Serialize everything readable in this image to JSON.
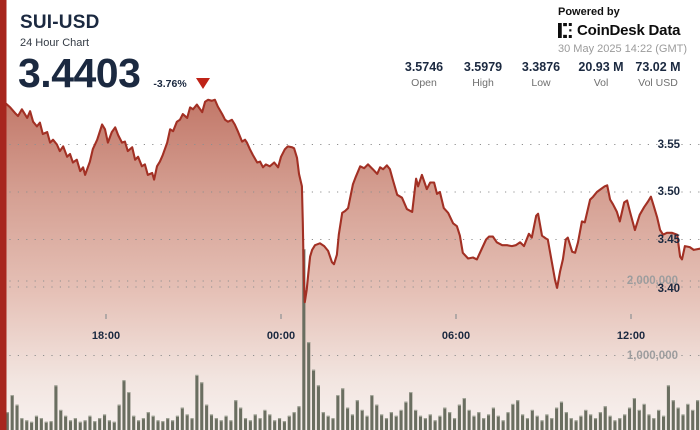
{
  "header": {
    "symbol": "SUI-USD",
    "subtitle": "24 Hour Chart",
    "price": "3.4403",
    "change": "-3.76%",
    "change_direction": "down"
  },
  "stats": [
    {
      "value": "3.5746",
      "label": "Open"
    },
    {
      "value": "3.5979",
      "label": "High"
    },
    {
      "value": "3.3876",
      "label": "Low"
    },
    {
      "value": "20.93 M",
      "label": "Vol"
    },
    {
      "value": "73.02 M",
      "label": "Vol USD"
    }
  ],
  "branding": {
    "powered_by": "Powered by",
    "brand": "CoinDesk Data",
    "logo": "coindesk-logo",
    "timestamp": "30 May 2025 14:22 (GMT)"
  },
  "colors": {
    "accent_red": "#a23024",
    "left_bar_red": "#a7261e",
    "triangle_red": "#bf2317",
    "navy_text": "#1b2940",
    "gray_text": "#6f6f6f",
    "volume_bar": "#6a6e60",
    "grid_dot": "#8f8f8f"
  },
  "chart_data": {
    "type": "area",
    "title": "SUI-USD 24 Hour Chart",
    "x_unit": "minutes since 14:22 GMT 29 May 2025",
    "x_range_minutes": [
      0,
      1440
    ],
    "price_axis": {
      "ticks": [
        "3.55",
        "3.50",
        "3.45",
        "3.40"
      ],
      "tick_values": [
        3.55,
        3.5,
        3.45,
        3.4
      ]
    },
    "volume_axis": {
      "ticks": [
        "2,000,000",
        "1,000,000"
      ],
      "tick_values_m": [
        2,
        1
      ]
    },
    "x_axis": {
      "ticks": [
        {
          "minute": 218,
          "label": "18:00"
        },
        {
          "minute": 578,
          "label": "00:00"
        },
        {
          "minute": 938,
          "label": "06:00"
        },
        {
          "minute": 1298,
          "label": "12:00"
        }
      ]
    },
    "price_series": [
      [
        0,
        3.598
      ],
      [
        10,
        3.594
      ],
      [
        21,
        3.589
      ],
      [
        31,
        3.583
      ],
      [
        37,
        3.58
      ],
      [
        45,
        3.587
      ],
      [
        56,
        3.578
      ],
      [
        62,
        3.585
      ],
      [
        68,
        3.574
      ],
      [
        76,
        3.569
      ],
      [
        82,
        3.573
      ],
      [
        88,
        3.561
      ],
      [
        97,
        3.563
      ],
      [
        103,
        3.552
      ],
      [
        109,
        3.555
      ],
      [
        117,
        3.55
      ],
      [
        123,
        3.543
      ],
      [
        130,
        3.548
      ],
      [
        138,
        3.537
      ],
      [
        144,
        3.54
      ],
      [
        150,
        3.531
      ],
      [
        158,
        3.534
      ],
      [
        165,
        3.522
      ],
      [
        171,
        3.526
      ],
      [
        175,
        3.518
      ],
      [
        185,
        3.532
      ],
      [
        191,
        3.545
      ],
      [
        200,
        3.555
      ],
      [
        210,
        3.571
      ],
      [
        216,
        3.566
      ],
      [
        222,
        3.552
      ],
      [
        230,
        3.563
      ],
      [
        237,
        3.568
      ],
      [
        243,
        3.56
      ],
      [
        251,
        3.552
      ],
      [
        257,
        3.553
      ],
      [
        263,
        3.543
      ],
      [
        272,
        3.547
      ],
      [
        278,
        3.534
      ],
      [
        284,
        3.537
      ],
      [
        292,
        3.527
      ],
      [
        298,
        3.529
      ],
      [
        304,
        3.518
      ],
      [
        313,
        3.52
      ],
      [
        317,
        3.513
      ],
      [
        323,
        3.527
      ],
      [
        329,
        3.532
      ],
      [
        335,
        3.539
      ],
      [
        344,
        3.552
      ],
      [
        350,
        3.566
      ],
      [
        356,
        3.564
      ],
      [
        364,
        3.574
      ],
      [
        370,
        3.576
      ],
      [
        376,
        3.582
      ],
      [
        385,
        3.578
      ],
      [
        391,
        3.589
      ],
      [
        397,
        3.587
      ],
      [
        405,
        3.592
      ],
      [
        409,
        3.589
      ],
      [
        416,
        3.584
      ],
      [
        422,
        3.595
      ],
      [
        428,
        3.597
      ],
      [
        436,
        3.596
      ],
      [
        442,
        3.597
      ],
      [
        448,
        3.59
      ],
      [
        457,
        3.582
      ],
      [
        463,
        3.576
      ],
      [
        469,
        3.574
      ],
      [
        477,
        3.576
      ],
      [
        483,
        3.571
      ],
      [
        490,
        3.563
      ],
      [
        498,
        3.553
      ],
      [
        504,
        3.555
      ],
      [
        508,
        3.552
      ],
      [
        514,
        3.545
      ],
      [
        520,
        3.539
      ],
      [
        529,
        3.531
      ],
      [
        535,
        3.532
      ],
      [
        541,
        3.526
      ],
      [
        547,
        3.529
      ],
      [
        555,
        3.527
      ],
      [
        564,
        3.531
      ],
      [
        572,
        3.526
      ],
      [
        578,
        3.537
      ],
      [
        586,
        3.545
      ],
      [
        592,
        3.548
      ],
      [
        601,
        3.547
      ],
      [
        605,
        3.546
      ],
      [
        611,
        3.536
      ],
      [
        615,
        3.519
      ],
      [
        621,
        3.506
      ],
      [
        623,
        3.468
      ],
      [
        625,
        3.411
      ],
      [
        627,
        3.384
      ],
      [
        631,
        3.397
      ],
      [
        634,
        3.413
      ],
      [
        638,
        3.432
      ],
      [
        642,
        3.439
      ],
      [
        648,
        3.444
      ],
      [
        658,
        3.446
      ],
      [
        667,
        3.443
      ],
      [
        675,
        3.438
      ],
      [
        683,
        3.426
      ],
      [
        687,
        3.424
      ],
      [
        693,
        3.434
      ],
      [
        697,
        3.455
      ],
      [
        704,
        3.478
      ],
      [
        710,
        3.48
      ],
      [
        716,
        3.483
      ],
      [
        726,
        3.508
      ],
      [
        732,
        3.516
      ],
      [
        741,
        3.527
      ],
      [
        749,
        3.525
      ],
      [
        757,
        3.529
      ],
      [
        767,
        3.524
      ],
      [
        776,
        3.519
      ],
      [
        782,
        3.526
      ],
      [
        788,
        3.524
      ],
      [
        796,
        3.528
      ],
      [
        802,
        3.524
      ],
      [
        808,
        3.513
      ],
      [
        817,
        3.497
      ],
      [
        827,
        3.494
      ],
      [
        837,
        3.482
      ],
      [
        848,
        3.479
      ],
      [
        856,
        3.514
      ],
      [
        860,
        3.506
      ],
      [
        868,
        3.518
      ],
      [
        872,
        3.512
      ],
      [
        878,
        3.503
      ],
      [
        885,
        3.51
      ],
      [
        893,
        3.51
      ],
      [
        899,
        3.498
      ],
      [
        905,
        3.5
      ],
      [
        913,
        3.483
      ],
      [
        922,
        3.478
      ],
      [
        932,
        3.467
      ],
      [
        940,
        3.464
      ],
      [
        946,
        3.454
      ],
      [
        952,
        3.436
      ],
      [
        963,
        3.43
      ],
      [
        973,
        3.431
      ],
      [
        981,
        3.429
      ],
      [
        991,
        3.44
      ],
      [
        1000,
        3.45
      ],
      [
        1006,
        3.453
      ],
      [
        1014,
        3.453
      ],
      [
        1022,
        3.447
      ],
      [
        1033,
        3.444
      ],
      [
        1043,
        3.444
      ],
      [
        1053,
        3.443
      ],
      [
        1061,
        3.444
      ],
      [
        1070,
        3.447
      ],
      [
        1078,
        3.443
      ],
      [
        1088,
        3.456
      ],
      [
        1094,
        3.452
      ],
      [
        1103,
        3.475
      ],
      [
        1107,
        3.477
      ],
      [
        1115,
        3.454
      ],
      [
        1123,
        3.451
      ],
      [
        1127,
        3.45
      ],
      [
        1135,
        3.427
      ],
      [
        1142,
        3.407
      ],
      [
        1146,
        3.399
      ],
      [
        1152,
        3.416
      ],
      [
        1158,
        3.429
      ],
      [
        1164,
        3.45
      ],
      [
        1168,
        3.452
      ],
      [
        1177,
        3.437
      ],
      [
        1183,
        3.436
      ],
      [
        1189,
        3.447
      ],
      [
        1197,
        3.469
      ],
      [
        1203,
        3.468
      ],
      [
        1214,
        3.492
      ],
      [
        1220,
        3.495
      ],
      [
        1228,
        3.5
      ],
      [
        1236,
        3.503
      ],
      [
        1244,
        3.506
      ],
      [
        1249,
        3.507
      ],
      [
        1255,
        3.492
      ],
      [
        1261,
        3.487
      ],
      [
        1269,
        3.479
      ],
      [
        1275,
        3.469
      ],
      [
        1284,
        3.489
      ],
      [
        1290,
        3.491
      ],
      [
        1296,
        3.479
      ],
      [
        1306,
        3.46
      ],
      [
        1316,
        3.476
      ],
      [
        1325,
        3.484
      ],
      [
        1333,
        3.49
      ],
      [
        1339,
        3.495
      ],
      [
        1345,
        3.485
      ],
      [
        1352,
        3.473
      ],
      [
        1358,
        3.46
      ],
      [
        1364,
        3.455
      ],
      [
        1372,
        3.457
      ],
      [
        1382,
        3.457
      ],
      [
        1393,
        3.455
      ],
      [
        1399,
        3.432
      ],
      [
        1403,
        3.429
      ],
      [
        1409,
        3.443
      ],
      [
        1419,
        3.442
      ],
      [
        1427,
        3.439
      ],
      [
        1440,
        3.4403
      ]
    ],
    "volume_series_m": [
      0,
      0.24,
      0.47,
      0.34,
      0.16,
      0.13,
      0.11,
      0.19,
      0.16,
      0.11,
      0.12,
      0.6,
      0.27,
      0.19,
      0.13,
      0.16,
      0.11,
      0.13,
      0.19,
      0.12,
      0.16,
      0.21,
      0.13,
      0.11,
      0.34,
      0.67,
      0.51,
      0.19,
      0.13,
      0.16,
      0.24,
      0.19,
      0.13,
      0.12,
      0.16,
      0.13,
      0.19,
      0.3,
      0.21,
      0.16,
      0.74,
      0.64,
      0.34,
      0.21,
      0.16,
      0.13,
      0.19,
      0.13,
      0.4,
      0.3,
      0.16,
      0.13,
      0.21,
      0.16,
      0.27,
      0.21,
      0.13,
      0.16,
      0.12,
      0.19,
      0.24,
      0.32,
      2.43,
      1.18,
      0.81,
      0.6,
      0.24,
      0.19,
      0.16,
      0.47,
      0.56,
      0.3,
      0.21,
      0.4,
      0.27,
      0.19,
      0.47,
      0.34,
      0.21,
      0.16,
      0.24,
      0.19,
      0.27,
      0.38,
      0.51,
      0.27,
      0.19,
      0.16,
      0.21,
      0.13,
      0.19,
      0.3,
      0.24,
      0.16,
      0.34,
      0.43,
      0.27,
      0.19,
      0.24,
      0.16,
      0.21,
      0.3,
      0.19,
      0.13,
      0.24,
      0.35,
      0.4,
      0.21,
      0.16,
      0.27,
      0.19,
      0.13,
      0.21,
      0.16,
      0.3,
      0.38,
      0.24,
      0.16,
      0.13,
      0.19,
      0.27,
      0.21,
      0.16,
      0.24,
      0.32,
      0.19,
      0.13,
      0.16,
      0.21,
      0.3,
      0.43,
      0.27,
      0.35,
      0.21,
      0.16,
      0.27,
      0.19,
      0.6,
      0.4,
      0.3,
      0.21,
      0.35,
      0.27,
      0.4
    ]
  }
}
